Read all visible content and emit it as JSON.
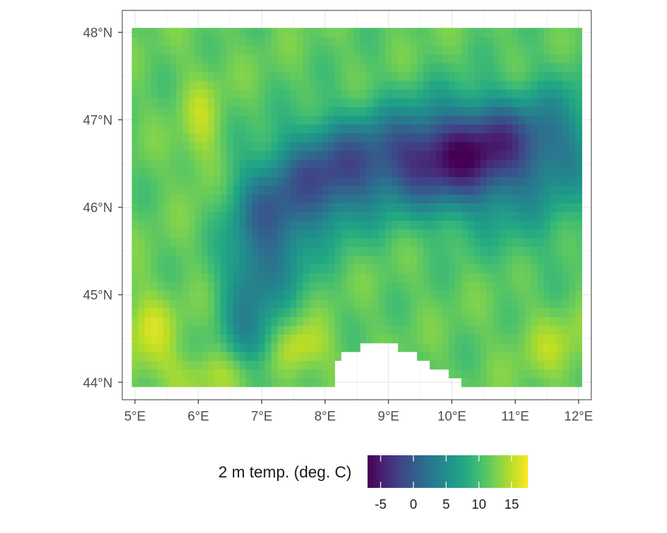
{
  "chart_data": {
    "type": "heatmap",
    "title": "",
    "xlabel": "",
    "ylabel": "",
    "xlim": [
      4.8,
      12.2
    ],
    "ylim": [
      43.8,
      48.25
    ],
    "x_ticks": [
      {
        "value": 5,
        "label": "5°E"
      },
      {
        "value": 6,
        "label": "6°E"
      },
      {
        "value": 7,
        "label": "7°E"
      },
      {
        "value": 8,
        "label": "8°E"
      },
      {
        "value": 9,
        "label": "9°E"
      },
      {
        "value": 10,
        "label": "10°E"
      },
      {
        "value": 11,
        "label": "11°E"
      },
      {
        "value": 12,
        "label": "12°E"
      }
    ],
    "y_ticks": [
      {
        "value": 44,
        "label": "44°N"
      },
      {
        "value": 45,
        "label": "45°N"
      },
      {
        "value": 46,
        "label": "46°N"
      },
      {
        "value": 47,
        "label": "47°N"
      },
      {
        "value": 48,
        "label": "48°N"
      }
    ],
    "grid": true,
    "grid_extent": {
      "lon_min": 4.95,
      "lon_max": 12.05,
      "lat_min": 43.95,
      "lat_max": 48.05
    },
    "cell_size": {
      "lon": 0.1,
      "lat": 0.1
    },
    "approximate_values": [
      {
        "lon": 5.5,
        "lat": 47.5,
        "value": 11
      },
      {
        "lon": 6.1,
        "lat": 46.9,
        "value": 14
      },
      {
        "lon": 7.0,
        "lat": 46.2,
        "value": 6
      },
      {
        "lon": 7.8,
        "lat": 46.0,
        "value": 0
      },
      {
        "lon": 9.0,
        "lat": 46.6,
        "value": 4
      },
      {
        "lon": 10.1,
        "lat": 46.5,
        "value": -4
      },
      {
        "lon": 10.9,
        "lat": 46.8,
        "value": 1
      },
      {
        "lon": 6.9,
        "lat": 45.0,
        "value": 4
      },
      {
        "lon": 7.5,
        "lat": 44.4,
        "value": 16
      },
      {
        "lon": 5.0,
        "lat": 44.6,
        "value": 15
      },
      {
        "lon": 9.5,
        "lat": 45.3,
        "value": 11
      },
      {
        "lon": 11.5,
        "lat": 44.6,
        "value": 13
      }
    ],
    "legend": {
      "title": "2 m temp. (deg. C)",
      "position": "bottom",
      "min": -7,
      "max": 17.5,
      "ticks": [
        {
          "value": -5,
          "label": "-5"
        },
        {
          "value": 0,
          "label": "0"
        },
        {
          "value": 5,
          "label": "5"
        },
        {
          "value": 10,
          "label": "10"
        },
        {
          "value": 15,
          "label": "15"
        }
      ]
    },
    "colormap": "viridis",
    "colors": {
      "panel_border": "#333333",
      "grid": "#ebebeb",
      "tick": "#333333",
      "missing": "#ffffff"
    }
  }
}
